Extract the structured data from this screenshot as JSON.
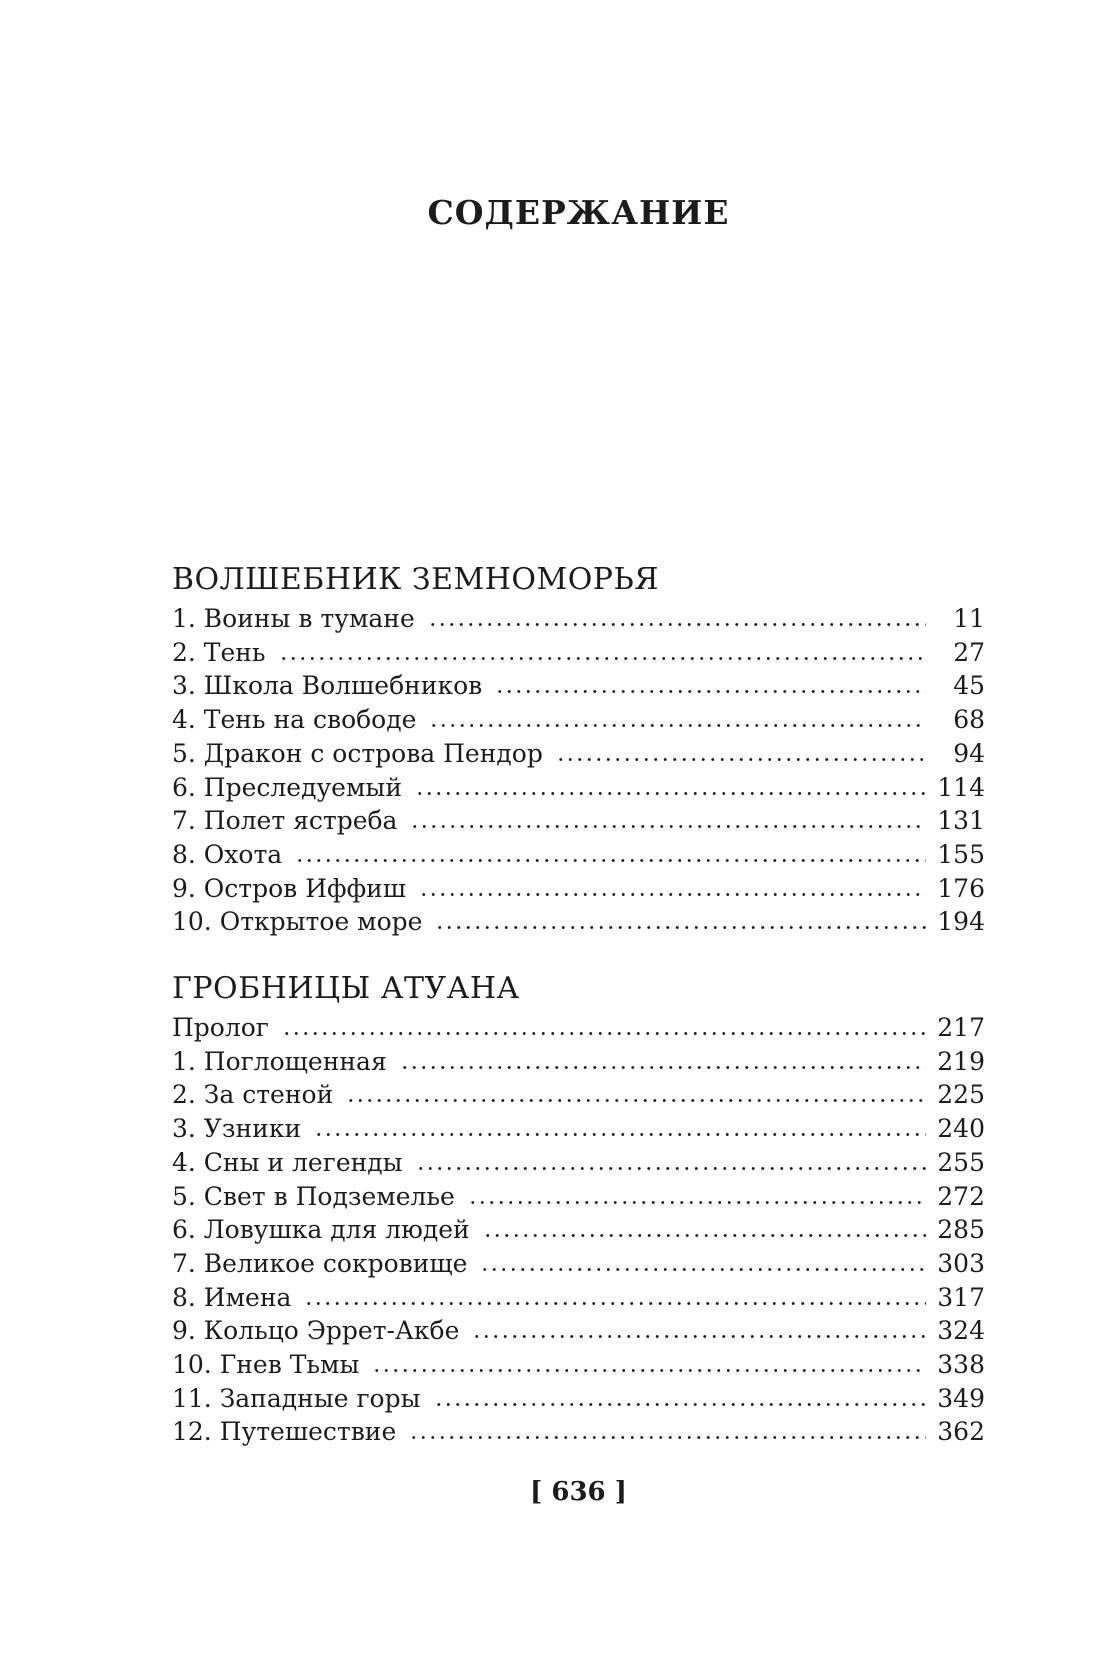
{
  "page": {
    "title": "СОДЕРЖАНИЕ",
    "folio": "[ 636 ]"
  },
  "colors": {
    "ink": "#1c1c1c",
    "paper": "#ffffff"
  },
  "toc": {
    "sections": [
      {
        "heading": "ВОЛШЕБНИК ЗЕМНОМОРЬЯ",
        "entries": [
          {
            "label": "1. Воины в тумане",
            "page": "11"
          },
          {
            "label": "2. Тень",
            "page": "27"
          },
          {
            "label": "3. Школа Волшебников",
            "page": "45"
          },
          {
            "label": "4. Тень на свободе",
            "page": "68"
          },
          {
            "label": "5. Дракон с острова Пендор",
            "page": "94"
          },
          {
            "label": "6. Преследуемый",
            "page": "114"
          },
          {
            "label": "7. Полет ястреба",
            "page": "131"
          },
          {
            "label": "8. Охота",
            "page": "155"
          },
          {
            "label": "9. Остров Иффиш",
            "page": "176"
          },
          {
            "label": "10. Открытое море",
            "page": "194"
          }
        ]
      },
      {
        "heading": "ГРОБНИЦЫ АТУАНА",
        "entries": [
          {
            "label": "Пролог",
            "page": "217"
          },
          {
            "label": "1. Поглощенная",
            "page": "219"
          },
          {
            "label": "2. За стеной",
            "page": "225"
          },
          {
            "label": "3. Узники",
            "page": "240"
          },
          {
            "label": "4. Сны и легенды",
            "page": "255"
          },
          {
            "label": "5. Свет в Подземелье",
            "page": "272"
          },
          {
            "label": "6. Ловушка для людей",
            "page": "285"
          },
          {
            "label": "7. Великое сокровище",
            "page": "303"
          },
          {
            "label": "8. Имена",
            "page": "317"
          },
          {
            "label": "9. Кольцо Эррет-Акбе",
            "page": "324"
          },
          {
            "label": "10. Гнев Тьмы",
            "page": "338"
          },
          {
            "label": "11. Западные горы",
            "page": "349"
          },
          {
            "label": "12. Путешествие",
            "page": "362"
          }
        ]
      }
    ]
  }
}
